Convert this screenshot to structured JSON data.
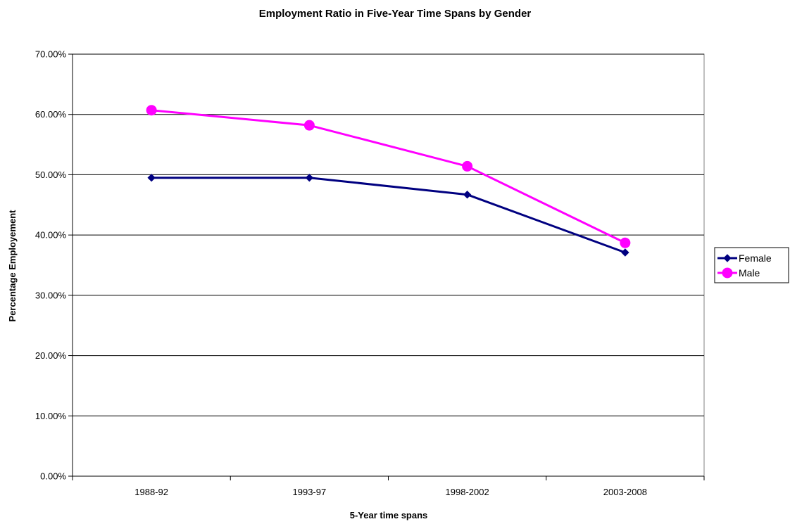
{
  "chart_data": {
    "type": "line",
    "title": "Employment Ratio in Five-Year Time Spans by Gender",
    "xlabel": "5-Year time spans",
    "ylabel": "Percentage Employement",
    "categories": [
      "1988-92",
      "1993-97",
      "1998-2002",
      "2003-2008"
    ],
    "y_ticks": [
      "0.00%",
      "10.00%",
      "20.00%",
      "30.00%",
      "40.00%",
      "50.00%",
      "60.00%",
      "70.00%"
    ],
    "ylim": [
      0,
      70
    ],
    "y_unit": "%",
    "grid": "horizontal",
    "legend_position": "right",
    "series": [
      {
        "name": "Female",
        "values": [
          49.5,
          49.5,
          46.7,
          37.1
        ],
        "color": "#000080",
        "marker": "diamond"
      },
      {
        "name": "Male",
        "values": [
          60.7,
          58.2,
          51.4,
          38.7
        ],
        "color": "#FF00FF",
        "marker": "circle"
      }
    ]
  }
}
